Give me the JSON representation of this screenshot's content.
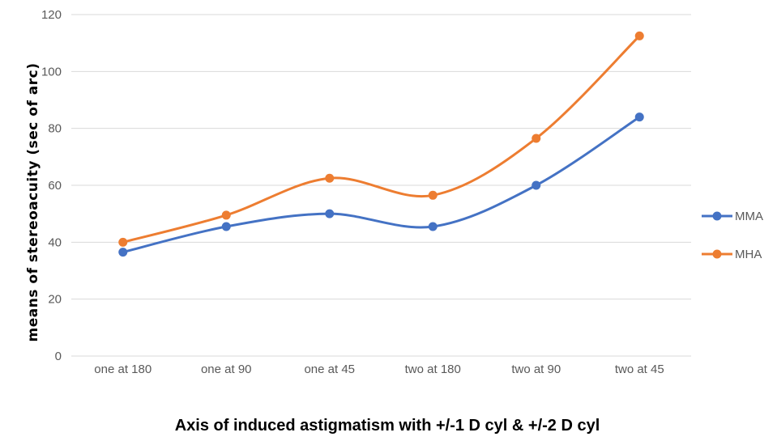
{
  "chart_data": {
    "type": "line",
    "categories": [
      "one at 180",
      "one at 90",
      "one at 45",
      "two at 180",
      "two at 90",
      "two at 45"
    ],
    "series": [
      {
        "name": "MMA",
        "color": "#4472C4",
        "values": [
          36.5,
          45.5,
          50,
          45.5,
          60,
          84
        ]
      },
      {
        "name": "MHA",
        "color": "#ED7D31",
        "values": [
          40,
          49.5,
          62.5,
          56.5,
          76.5,
          112.5
        ]
      }
    ],
    "xlabel": "Axis of induced astigmatism with +/-1 D cyl & +/-2 D cyl",
    "ylabel": "means of stereoacuity (sec of arc)",
    "ylim": [
      0,
      120
    ],
    "yticks": [
      0,
      20,
      40,
      60,
      80,
      100,
      120
    ],
    "grid": true,
    "legend": "right",
    "smooth": true
  }
}
